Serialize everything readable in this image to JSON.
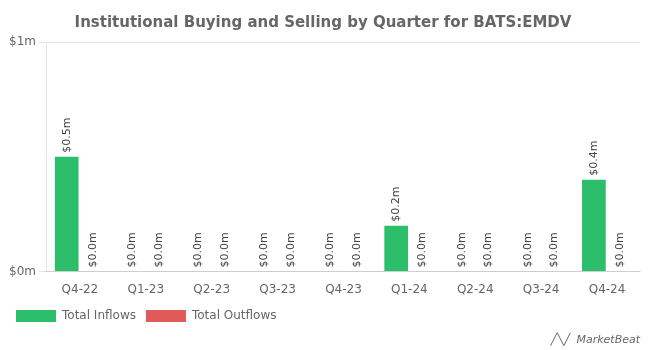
{
  "chart_data": {
    "type": "bar",
    "title": "Institutional Buying and Selling by Quarter for BATS:EMDV",
    "categories": [
      "Q4-22",
      "Q1-23",
      "Q2-23",
      "Q3-23",
      "Q4-23",
      "Q1-24",
      "Q2-24",
      "Q3-24",
      "Q4-24"
    ],
    "series": [
      {
        "name": "Total Inflows",
        "color": "#2dbe6c",
        "values": [
          0.5,
          0.0,
          0.0,
          0.0,
          0.0,
          0.2,
          0.0,
          0.0,
          0.4
        ],
        "value_labels": [
          "$0.5m",
          "$0.0m",
          "$0.0m",
          "$0.0m",
          "$0.0m",
          "$0.2m",
          "$0.0m",
          "$0.0m",
          "$0.4m"
        ]
      },
      {
        "name": "Total Outflows",
        "color": "#e05a5a",
        "values": [
          0.0,
          0.0,
          0.0,
          0.0,
          0.0,
          0.0,
          0.0,
          0.0,
          0.0
        ],
        "value_labels": [
          "$0.0m",
          "$0.0m",
          "$0.0m",
          "$0.0m",
          "$0.0m",
          "$0.0m",
          "$0.0m",
          "$0.0m",
          "$0.0m"
        ]
      }
    ],
    "ylim": [
      0,
      1.0
    ],
    "yticks": [
      {
        "value": 0.0,
        "label": "$0m"
      },
      {
        "value": 1.0,
        "label": "$1m"
      }
    ],
    "grid": true,
    "legend": "bottom",
    "data_labels": true,
    "annotations": [
      "╱╲╱",
      "MarketBeat"
    ]
  }
}
